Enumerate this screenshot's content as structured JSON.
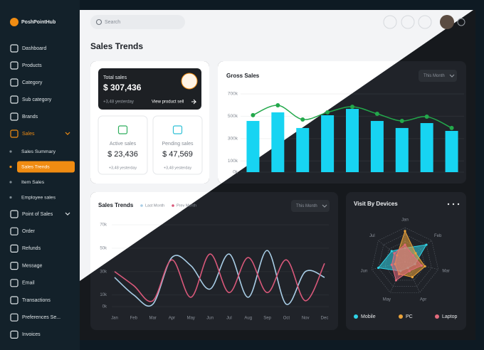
{
  "sidebar": {
    "brand": "PoshPointHub",
    "menu_top": [
      "Dashboard",
      "Products",
      "Category",
      "Sub category",
      "Brands",
      "Sales"
    ],
    "sales_submenu": [
      "Sales Summary",
      "Sales Trends",
      "Item Sales",
      "Employee sales"
    ],
    "menu_bottom": [
      "Point of Sales",
      "Order",
      "Refunds",
      "Message",
      "Email",
      "Transactions",
      "Preferences Se...",
      "Invoices"
    ]
  },
  "topbar": {
    "search_placeholder": "Search"
  },
  "page_title": "Sales Trends",
  "summary": {
    "total": {
      "label": "Total sales",
      "value": "$ 307,436",
      "change": "+3,48 yesterday",
      "link": "View product sell"
    },
    "active": {
      "label": "Active sales",
      "value": "$ 23,436",
      "change": "+3,48 yesterday"
    },
    "pending": {
      "label": "Pending sales",
      "value": "$ 47,569",
      "change": "+3,48 yesterday"
    }
  },
  "chart_data": [
    {
      "type": "bar",
      "title": "Gross Sales",
      "filter": "This Month",
      "categories": [
        null,
        null,
        null,
        null,
        null,
        null,
        null,
        null,
        null
      ],
      "series": [
        {
          "type": "bar",
          "color": "#17d4f2",
          "values": [
            458,
            535,
            395,
            509,
            566,
            458,
            395,
            439,
            369
          ]
        },
        {
          "type": "line",
          "color": "#23a84b",
          "values": [
            510,
            598,
            471,
            535,
            585,
            522,
            458,
            496,
            395
          ]
        }
      ],
      "ylim": [
        0,
        700
      ],
      "yticks": [
        {
          "value": 0,
          "label": "0k"
        },
        {
          "value": 100,
          "label": "100k"
        },
        {
          "value": 300,
          "label": "300k"
        },
        {
          "value": 500,
          "label": "500k"
        },
        {
          "value": 700,
          "label": "700k"
        }
      ]
    },
    {
      "type": "line",
      "title": "Sales Trends",
      "filter": "This Month",
      "categories": [
        "Jan",
        "Feb",
        "Mar",
        "Apr",
        "May",
        "Jun",
        "Jul",
        "Aug",
        "Sep",
        "Oct",
        "Nov",
        "Dec"
      ],
      "series": [
        {
          "name": "Last Month",
          "color": "#a8cde6",
          "values": [
            25,
            10,
            2,
            42,
            35,
            15,
            45,
            8,
            48,
            2,
            30,
            25
          ]
        },
        {
          "name": "Prev Month",
          "color": "#d9587a",
          "values": [
            30,
            18,
            5,
            40,
            8,
            45,
            12,
            42,
            12,
            40,
            5,
            37
          ]
        }
      ],
      "ylim": [
        0,
        70
      ],
      "yticks": [
        {
          "value": 0,
          "label": "0k"
        },
        {
          "value": 10,
          "label": "10k"
        },
        {
          "value": 30,
          "label": "30k"
        },
        {
          "value": 50,
          "label": "50k"
        },
        {
          "value": 70,
          "label": "70k"
        }
      ]
    },
    {
      "type": "radar",
      "title": "Visit By Devices",
      "categories": [
        "Jan",
        "Feb",
        "Mar",
        "Apr",
        "May",
        "Jun",
        "Jul"
      ],
      "rlim": [
        0,
        100
      ],
      "series": [
        {
          "name": "Mobile",
          "color": "#2fd3e6",
          "values": [
            40,
            80,
            30,
            20,
            30,
            80,
            50
          ]
        },
        {
          "name": "PC",
          "color": "#eba33a",
          "values": [
            90,
            40,
            60,
            50,
            40,
            30,
            30
          ]
        },
        {
          "name": "Laptop",
          "color": "#e36a7c",
          "values": [
            50,
            30,
            50,
            30,
            60,
            40,
            40
          ]
        }
      ]
    }
  ]
}
